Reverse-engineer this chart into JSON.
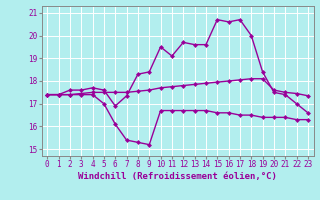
{
  "xlabel": "Windchill (Refroidissement éolien,°C)",
  "background_color": "#b2eeee",
  "grid_color": "#ffffff",
  "line_color": "#990099",
  "x_values": [
    0,
    1,
    2,
    3,
    4,
    5,
    6,
    7,
    8,
    9,
    10,
    11,
    12,
    13,
    14,
    15,
    16,
    17,
    18,
    19,
    20,
    21,
    22,
    23
  ],
  "ylim": [
    14.7,
    21.3
  ],
  "yticks": [
    15,
    16,
    17,
    18,
    19,
    20,
    21
  ],
  "xticks": [
    0,
    1,
    2,
    3,
    4,
    5,
    6,
    7,
    8,
    9,
    10,
    11,
    12,
    13,
    14,
    15,
    16,
    17,
    18,
    19,
    20,
    21,
    22,
    23
  ],
  "series": {
    "line1": [
      17.4,
      17.4,
      17.6,
      17.6,
      17.7,
      17.6,
      16.9,
      17.35,
      18.3,
      18.4,
      19.5,
      19.1,
      19.7,
      19.6,
      19.6,
      20.7,
      20.6,
      20.7,
      20.0,
      18.4,
      17.5,
      17.4,
      17.0,
      16.6
    ],
    "line2": [
      17.4,
      17.4,
      17.4,
      17.45,
      17.5,
      17.5,
      17.5,
      17.5,
      17.55,
      17.6,
      17.7,
      17.75,
      17.8,
      17.85,
      17.9,
      17.95,
      18.0,
      18.05,
      18.1,
      18.1,
      17.6,
      17.5,
      17.45,
      17.35
    ],
    "line3": [
      17.4,
      17.4,
      17.4,
      17.4,
      17.4,
      17.0,
      16.1,
      15.4,
      15.3,
      15.2,
      16.7,
      16.7,
      16.7,
      16.7,
      16.7,
      16.6,
      16.6,
      16.5,
      16.5,
      16.4,
      16.4,
      16.4,
      16.3,
      16.3
    ]
  },
  "marker": "D",
  "markersize": 2.5,
  "linewidth": 1.0,
  "tick_fontsize": 5.5,
  "xlabel_fontsize": 6.5
}
